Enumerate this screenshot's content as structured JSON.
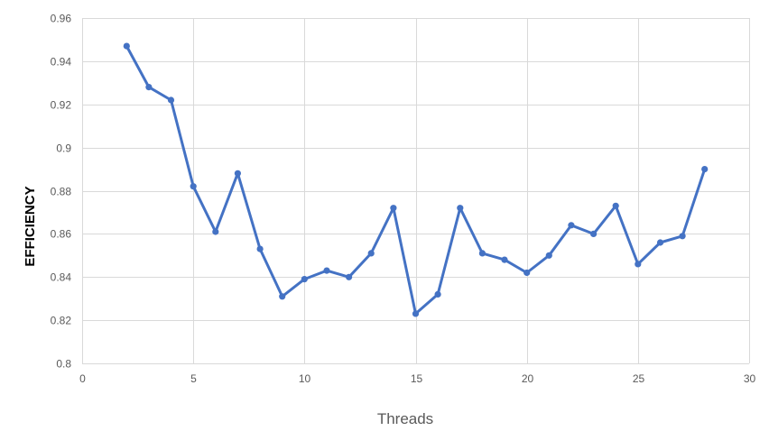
{
  "chart_data": {
    "type": "line",
    "title": "",
    "xlabel": "Threads",
    "ylabel": "EFFICIENCY",
    "xlim": [
      0,
      30
    ],
    "ylim": [
      0.8,
      0.96
    ],
    "x_ticks": [
      "0",
      "5",
      "10",
      "15",
      "20",
      "25",
      "30"
    ],
    "x_tick_values": [
      0,
      5,
      10,
      15,
      20,
      25,
      30
    ],
    "y_ticks": [
      "0.8",
      "0.82",
      "0.84",
      "0.86",
      "0.88",
      "0.9",
      "0.92",
      "0.94",
      "0.96"
    ],
    "y_tick_values": [
      0.8,
      0.82,
      0.84,
      0.86,
      0.88,
      0.9,
      0.92,
      0.94,
      0.96
    ],
    "grid": true,
    "legend": "none",
    "series": [
      {
        "color": "#4472c4",
        "x": [
          2,
          3,
          4,
          5,
          6,
          7,
          8,
          9,
          10,
          11,
          12,
          13,
          14,
          15,
          16,
          17,
          18,
          19,
          20,
          21,
          22,
          23,
          24,
          25,
          26,
          27,
          28
        ],
        "y": [
          0.947,
          0.928,
          0.922,
          0.882,
          0.861,
          0.888,
          0.853,
          0.831,
          0.839,
          0.843,
          0.84,
          0.851,
          0.872,
          0.823,
          0.832,
          0.872,
          0.851,
          0.848,
          0.842,
          0.85,
          0.864,
          0.86,
          0.873,
          0.846,
          0.856,
          0.859,
          0.89
        ]
      }
    ]
  }
}
